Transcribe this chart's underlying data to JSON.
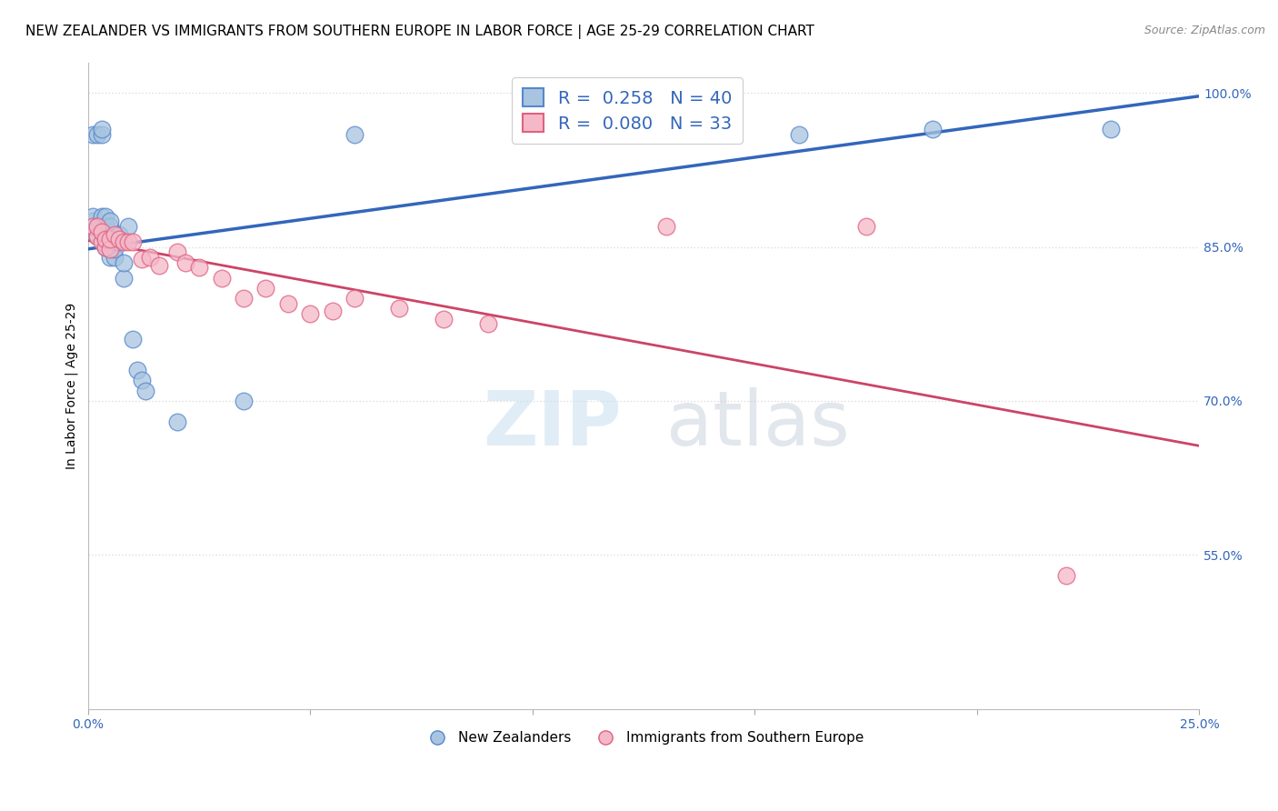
{
  "title": "NEW ZEALANDER VS IMMIGRANTS FROM SOUTHERN EUROPE IN LABOR FORCE | AGE 25-29 CORRELATION CHART",
  "source": "Source: ZipAtlas.com",
  "ylabel": "In Labor Force | Age 25-29",
  "xmin": 0.0,
  "xmax": 0.25,
  "ymin": 0.4,
  "ymax": 1.03,
  "yticks": [
    0.55,
    0.7,
    0.85,
    1.0
  ],
  "ytick_labels": [
    "55.0%",
    "70.0%",
    "85.0%",
    "100.0%"
  ],
  "blue_R": 0.258,
  "blue_N": 40,
  "pink_R": 0.08,
  "pink_N": 33,
  "blue_color": "#A8C4E0",
  "pink_color": "#F4B8C8",
  "blue_edge_color": "#5588CC",
  "pink_edge_color": "#E06080",
  "blue_line_color": "#3366BB",
  "pink_line_color": "#CC4466",
  "legend_label_blue": "New Zealanders",
  "legend_label_pink": "Immigrants from Southern Europe",
  "blue_x": [
    0.001,
    0.001,
    0.001,
    0.001,
    0.002,
    0.002,
    0.002,
    0.003,
    0.003,
    0.003,
    0.003,
    0.004,
    0.004,
    0.004,
    0.004,
    0.004,
    0.005,
    0.005,
    0.005,
    0.005,
    0.006,
    0.006,
    0.006,
    0.007,
    0.007,
    0.008,
    0.008,
    0.009,
    0.01,
    0.011,
    0.012,
    0.013,
    0.02,
    0.035,
    0.06,
    0.1,
    0.125,
    0.16,
    0.19,
    0.23
  ],
  "blue_y": [
    0.87,
    0.875,
    0.88,
    0.96,
    0.86,
    0.87,
    0.96,
    0.87,
    0.88,
    0.96,
    0.965,
    0.85,
    0.858,
    0.862,
    0.87,
    0.88,
    0.84,
    0.855,
    0.87,
    0.875,
    0.84,
    0.848,
    0.855,
    0.855,
    0.862,
    0.82,
    0.835,
    0.87,
    0.76,
    0.73,
    0.72,
    0.71,
    0.68,
    0.7,
    0.96,
    0.96,
    0.965,
    0.96,
    0.965,
    0.965
  ],
  "pink_x": [
    0.001,
    0.002,
    0.002,
    0.003,
    0.003,
    0.004,
    0.004,
    0.005,
    0.005,
    0.006,
    0.007,
    0.008,
    0.009,
    0.01,
    0.012,
    0.014,
    0.016,
    0.02,
    0.022,
    0.025,
    0.03,
    0.035,
    0.04,
    0.045,
    0.05,
    0.055,
    0.06,
    0.07,
    0.08,
    0.09,
    0.13,
    0.175,
    0.22
  ],
  "pink_y": [
    0.87,
    0.86,
    0.87,
    0.855,
    0.865,
    0.85,
    0.858,
    0.848,
    0.858,
    0.862,
    0.858,
    0.855,
    0.855,
    0.855,
    0.838,
    0.84,
    0.832,
    0.845,
    0.835,
    0.83,
    0.82,
    0.8,
    0.81,
    0.795,
    0.785,
    0.788,
    0.8,
    0.79,
    0.78,
    0.775,
    0.87,
    0.87,
    0.53
  ],
  "watermark_zip": "ZIP",
  "watermark_atlas": "atlas",
  "background_color": "#FFFFFF",
  "grid_color": "#DDDDDD",
  "title_fontsize": 11,
  "axis_label_fontsize": 10,
  "tick_fontsize": 10,
  "legend_fontsize": 14
}
